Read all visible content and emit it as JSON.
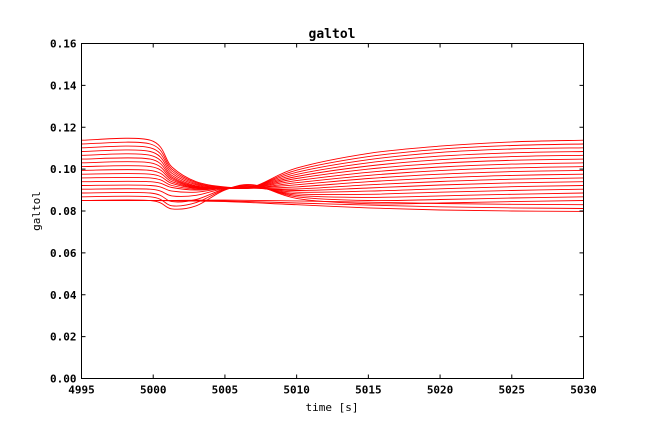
{
  "chart_data": {
    "type": "line",
    "title": "galtol",
    "xlabel": "time [s]",
    "ylabel": "galtol",
    "xlim": [
      4995,
      5030
    ],
    "ylim": [
      0.0,
      0.16
    ],
    "xticks": [
      4995,
      5000,
      5005,
      5010,
      5015,
      5020,
      5025,
      5030
    ],
    "yticks": [
      0.0,
      0.02,
      0.04,
      0.06,
      0.08,
      0.1,
      0.12,
      0.14,
      0.16
    ],
    "xtick_labels": [
      "4995",
      "5000",
      "5005",
      "5010",
      "5015",
      "5020",
      "5025",
      "5030"
    ],
    "ytick_labels": [
      "0.00",
      "0.02",
      "0.04",
      "0.06",
      "0.08",
      "0.10",
      "0.12",
      "0.14",
      "0.16"
    ],
    "grid": false,
    "line_color": "#ff0000",
    "series_initial_values": [
      0.085,
      0.0868,
      0.0886,
      0.0904,
      0.0922,
      0.094,
      0.0958,
      0.0976,
      0.0994,
      0.1012,
      0.103,
      0.1048,
      0.1066,
      0.1084,
      0.1102,
      0.112,
      0.1138
    ],
    "series_final_values": [
      0.08,
      0.0816,
      0.0832,
      0.0848,
      0.0864,
      0.088,
      0.0896,
      0.0912,
      0.0928,
      0.0944,
      0.096,
      0.0976,
      0.0992,
      0.1008,
      0.1024,
      0.104,
      0.1056,
      0.1072,
      0.1088,
      0.1104,
      0.112,
      0.1136
    ],
    "series": [
      {
        "x": [
          4995,
          4999.8,
          5001.3,
          5003,
          5005,
          5007,
          5010,
          5015,
          5020,
          5025,
          5030
        ],
        "values": [
          0.1138,
          0.1138,
          0.101,
          0.094,
          0.0915,
          0.0917,
          0.1005,
          0.1075,
          0.111,
          0.113,
          0.1138
        ]
      },
      {
        "x": [
          4995,
          4999.8,
          5001.3,
          5003,
          5005,
          5007,
          5010,
          5015,
          5020,
          5025,
          5030
        ],
        "values": [
          0.112,
          0.112,
          0.1,
          0.0935,
          0.0913,
          0.0916,
          0.0995,
          0.106,
          0.1095,
          0.1113,
          0.112
        ]
      },
      {
        "x": [
          4995,
          4999.8,
          5001.3,
          5003,
          5005,
          5007,
          5010,
          5015,
          5020,
          5025,
          5030
        ],
        "values": [
          0.1102,
          0.1102,
          0.099,
          0.093,
          0.0911,
          0.0915,
          0.0985,
          0.1045,
          0.108,
          0.1096,
          0.1102
        ]
      },
      {
        "x": [
          4995,
          4999.8,
          5001.3,
          5003,
          5005,
          5007,
          5010,
          5015,
          5020,
          5025,
          5030
        ],
        "values": [
          0.1084,
          0.1084,
          0.098,
          0.0925,
          0.091,
          0.0914,
          0.0975,
          0.103,
          0.1062,
          0.1078,
          0.1084
        ]
      },
      {
        "x": [
          4995,
          4999.8,
          5001.3,
          5003,
          5005,
          5007,
          5010,
          5015,
          5020,
          5025,
          5030
        ],
        "values": [
          0.1066,
          0.1066,
          0.097,
          0.092,
          0.0909,
          0.0913,
          0.0965,
          0.1015,
          0.1045,
          0.106,
          0.1066
        ]
      },
      {
        "x": [
          4995,
          4999.8,
          5001.3,
          5003,
          5005,
          5007,
          5010,
          5015,
          5020,
          5025,
          5030
        ],
        "values": [
          0.1048,
          0.1048,
          0.0962,
          0.0917,
          0.0909,
          0.0912,
          0.0955,
          0.1,
          0.1028,
          0.1042,
          0.1048
        ]
      },
      {
        "x": [
          4995,
          4999.8,
          5001.3,
          5003,
          5005,
          5007,
          5010,
          5015,
          5020,
          5025,
          5030
        ],
        "values": [
          0.103,
          0.103,
          0.0955,
          0.0914,
          0.0909,
          0.0911,
          0.0945,
          0.0985,
          0.101,
          0.1024,
          0.103
        ]
      },
      {
        "x": [
          4995,
          4999.8,
          5001.3,
          5003,
          5005,
          5007,
          5010,
          5015,
          5020,
          5025,
          5030
        ],
        "values": [
          0.1012,
          0.1012,
          0.0948,
          0.0912,
          0.0909,
          0.091,
          0.0935,
          0.097,
          0.0993,
          0.1006,
          0.1012
        ]
      },
      {
        "x": [
          4995,
          4999.8,
          5001.3,
          5003,
          5005,
          5007,
          5010,
          5015,
          5020,
          5025,
          5030
        ],
        "values": [
          0.0994,
          0.0994,
          0.094,
          0.091,
          0.0909,
          0.091,
          0.0925,
          0.0955,
          0.0976,
          0.0988,
          0.0994
        ]
      },
      {
        "x": [
          4995,
          4999.8,
          5001.3,
          5003,
          5005,
          5007,
          5010,
          5015,
          5020,
          5025,
          5030
        ],
        "values": [
          0.0976,
          0.0976,
          0.0932,
          0.0908,
          0.0909,
          0.0909,
          0.0915,
          0.094,
          0.0958,
          0.097,
          0.0976
        ]
      },
      {
        "x": [
          4995,
          4999.8,
          5001.3,
          5003,
          5005,
          5007,
          5010,
          5015,
          5020,
          5025,
          5030
        ],
        "values": [
          0.0958,
          0.0958,
          0.0922,
          0.0904,
          0.0909,
          0.0909,
          0.0905,
          0.0925,
          0.0941,
          0.0952,
          0.0958
        ]
      },
      {
        "x": [
          4995,
          4999.8,
          5001.3,
          5003,
          5005,
          5007,
          5010,
          5015,
          5020,
          5025,
          5030
        ],
        "values": [
          0.094,
          0.094,
          0.0912,
          0.09,
          0.0909,
          0.091,
          0.0898,
          0.091,
          0.0924,
          0.0934,
          0.094
        ]
      },
      {
        "x": [
          4995,
          4999.8,
          5001.3,
          5003,
          5005,
          5007,
          5010,
          5015,
          5020,
          5025,
          5030
        ],
        "values": [
          0.0922,
          0.0922,
          0.0895,
          0.089,
          0.0909,
          0.0912,
          0.089,
          0.0895,
          0.0906,
          0.0916,
          0.0922
        ]
      },
      {
        "x": [
          4995,
          4999.8,
          5001.3,
          5003,
          5005,
          5007,
          5010,
          5015,
          5020,
          5025,
          5030
        ],
        "values": [
          0.0904,
          0.0904,
          0.0872,
          0.0875,
          0.0908,
          0.0915,
          0.0882,
          0.088,
          0.089,
          0.0898,
          0.0904
        ]
      },
      {
        "x": [
          4995,
          4999.8,
          5001.3,
          5003,
          5005,
          5007,
          5010,
          5015,
          5020,
          5025,
          5030
        ],
        "values": [
          0.0886,
          0.0886,
          0.0845,
          0.0855,
          0.0905,
          0.0918,
          0.0875,
          0.0865,
          0.0872,
          0.088,
          0.0886
        ]
      },
      {
        "x": [
          4995,
          4999.8,
          5001.3,
          5003,
          5005,
          5007,
          5010,
          5015,
          5020,
          5025,
          5030
        ],
        "values": [
          0.0868,
          0.0868,
          0.0825,
          0.084,
          0.0902,
          0.0922,
          0.0868,
          0.085,
          0.0855,
          0.0862,
          0.0868
        ]
      },
      {
        "x": [
          4995,
          4999.8,
          5001.3,
          5003,
          5005,
          5007,
          5010,
          5015,
          5020,
          5025,
          5030
        ],
        "values": [
          0.085,
          0.085,
          0.081,
          0.0825,
          0.09,
          0.0925,
          0.086,
          0.0835,
          0.0838,
          0.0845,
          0.085
        ]
      },
      {
        "x": [
          4995,
          5000,
          5005,
          5010,
          5015,
          5020,
          5025,
          5030
        ],
        "values": [
          0.085,
          0.085,
          0.0845,
          0.083,
          0.0815,
          0.0805,
          0.08,
          0.0798
        ]
      },
      {
        "x": [
          4995,
          5000,
          5005,
          5010,
          5015,
          5020,
          5025,
          5030
        ],
        "values": [
          0.085,
          0.085,
          0.0848,
          0.0838,
          0.0828,
          0.082,
          0.0815,
          0.0812
        ]
      },
      {
        "x": [
          4995,
          5000,
          5005,
          5010,
          5015,
          5020,
          5025,
          5030
        ],
        "values": [
          0.085,
          0.085,
          0.0852,
          0.0848,
          0.0842,
          0.0836,
          0.0832,
          0.083
        ]
      }
    ]
  }
}
